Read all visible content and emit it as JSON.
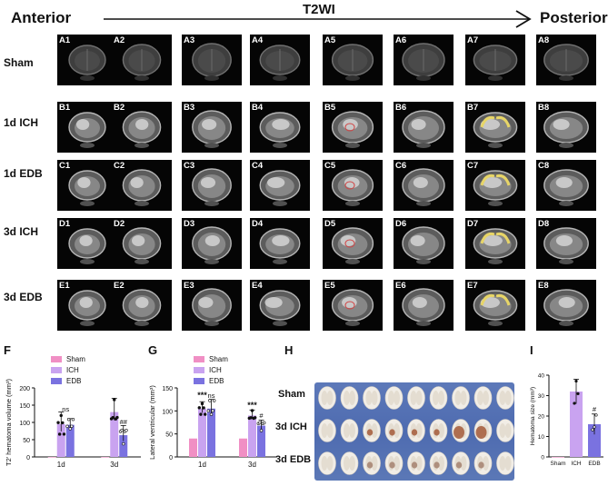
{
  "header": {
    "anterior": "Anterior",
    "title": "T2WI",
    "posterior": "Posterior"
  },
  "rows": [
    {
      "label": "Sham",
      "cells": [
        "A1",
        "A2",
        "A3",
        "A4",
        "A5",
        "A6",
        "A7",
        "A8"
      ]
    },
    {
      "label": "1d ICH",
      "cells": [
        "B1",
        "B2",
        "B3",
        "B4",
        "B5",
        "B6",
        "B7",
        "B8"
      ]
    },
    {
      "label": "1d EDB",
      "cells": [
        "C1",
        "C2",
        "C3",
        "C4",
        "C5",
        "C6",
        "C7",
        "C8"
      ]
    },
    {
      "label": "3d ICH",
      "cells": [
        "D1",
        "D2",
        "D3",
        "D4",
        "D5",
        "D6",
        "D7",
        "D8"
      ]
    },
    {
      "label": "3d EDB",
      "cells": [
        "E1",
        "E2",
        "E3",
        "E4",
        "E5",
        "E6",
        "E7",
        "E8"
      ]
    }
  ],
  "panels": {
    "F": "F",
    "G": "G",
    "H": "H",
    "I": "I"
  },
  "photo": {
    "rows": [
      "Sham",
      "3d ICH",
      "3d EDB"
    ]
  },
  "colors": {
    "sham": "#f08fc4",
    "ich": "#c9a3f0",
    "edb": "#7a72e0"
  },
  "chart_data": [
    {
      "id": "F",
      "type": "bar",
      "ylabel": "T2' hematoma volume (mm³)",
      "categories": [
        "1d",
        "3d"
      ],
      "ylim": [
        0,
        200
      ],
      "yticks": [
        0,
        50,
        100,
        150,
        200
      ],
      "legend": [
        "Sham",
        "ICH",
        "EDB"
      ],
      "series": [
        {
          "name": "Sham",
          "values": [
            0,
            0
          ]
        },
        {
          "name": "ICH",
          "values": [
            95,
            130
          ]
        },
        {
          "name": "EDB",
          "values": [
            93,
            63
          ]
        }
      ],
      "errors": {
        "ICH": [
          35,
          40
        ],
        "EDB": [
          18,
          28
        ]
      },
      "annotations": [
        {
          "category": "1d",
          "text": "ns"
        },
        {
          "category": "3d",
          "text": "##"
        }
      ]
    },
    {
      "id": "G",
      "type": "bar",
      "ylabel": "Lateral ventricular (mm³)",
      "categories": [
        "1d",
        "3d"
      ],
      "ylim": [
        0,
        150
      ],
      "yticks": [
        0,
        50,
        100,
        150
      ],
      "legend": [
        "Sham",
        "ICH",
        "EDB"
      ],
      "series": [
        {
          "name": "Sham",
          "values": [
            40,
            40
          ]
        },
        {
          "name": "ICH",
          "values": [
            105,
            90
          ]
        },
        {
          "name": "EDB",
          "values": [
            105,
            68
          ]
        }
      ],
      "errors": {
        "ICH": [
          15,
          12
        ],
        "EDB": [
          20,
          12
        ]
      },
      "annotations": [
        {
          "category": "1d",
          "text": "***"
        },
        {
          "category": "1d",
          "text": "ns"
        },
        {
          "category": "3d",
          "text": "***"
        },
        {
          "category": "3d",
          "text": "#"
        }
      ]
    },
    {
      "id": "I",
      "type": "bar",
      "ylabel": "Hematoma size (mm³)",
      "categories": [
        "Sham",
        "ICH",
        "EDB"
      ],
      "ylim": [
        0,
        40
      ],
      "yticks": [
        0,
        10,
        20,
        30,
        40
      ],
      "values": [
        0,
        32,
        16
      ],
      "errors": [
        0,
        6,
        5
      ],
      "annotations": [
        {
          "category": "EDB",
          "text": "#"
        }
      ]
    }
  ]
}
